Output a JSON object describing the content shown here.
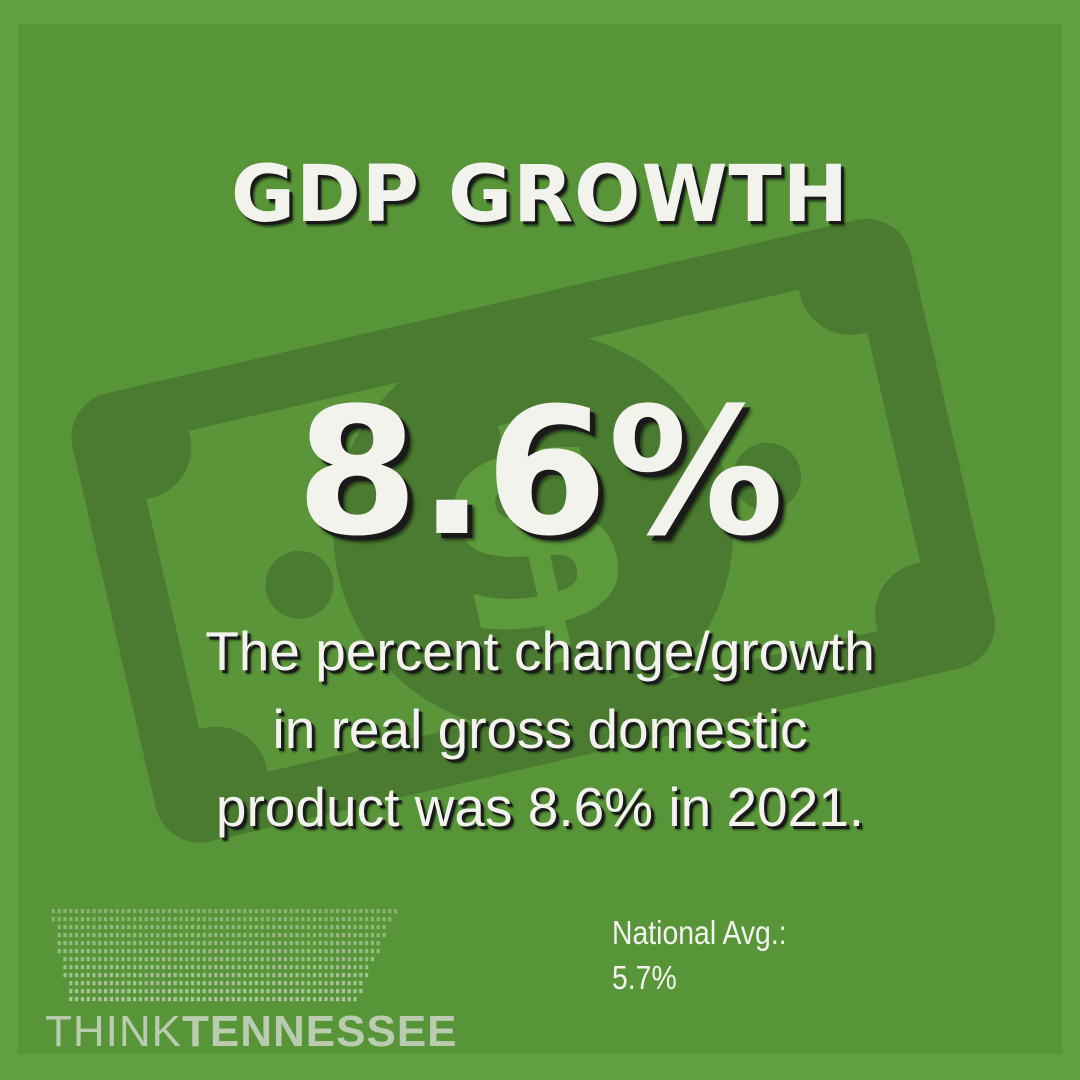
{
  "headline": "GDP GROWTH",
  "stat": "8.6%",
  "description": {
    "lines": [
      "The percent change/growth",
      "in real gross domestic",
      "product was 8.6% in 2021."
    ]
  },
  "national": {
    "label": "National Avg.:",
    "value": "5.7%"
  },
  "logo": {
    "think": "THINK",
    "tennessee": "TENNESSEE"
  },
  "icons": {
    "background": "dollar-bill-icon",
    "logo_graphic": "tennessee-dots-icon"
  },
  "colors": {
    "background": "#61a042",
    "panel": "#589538",
    "bill": "#4a7b30",
    "text": "#f3f3ee"
  }
}
